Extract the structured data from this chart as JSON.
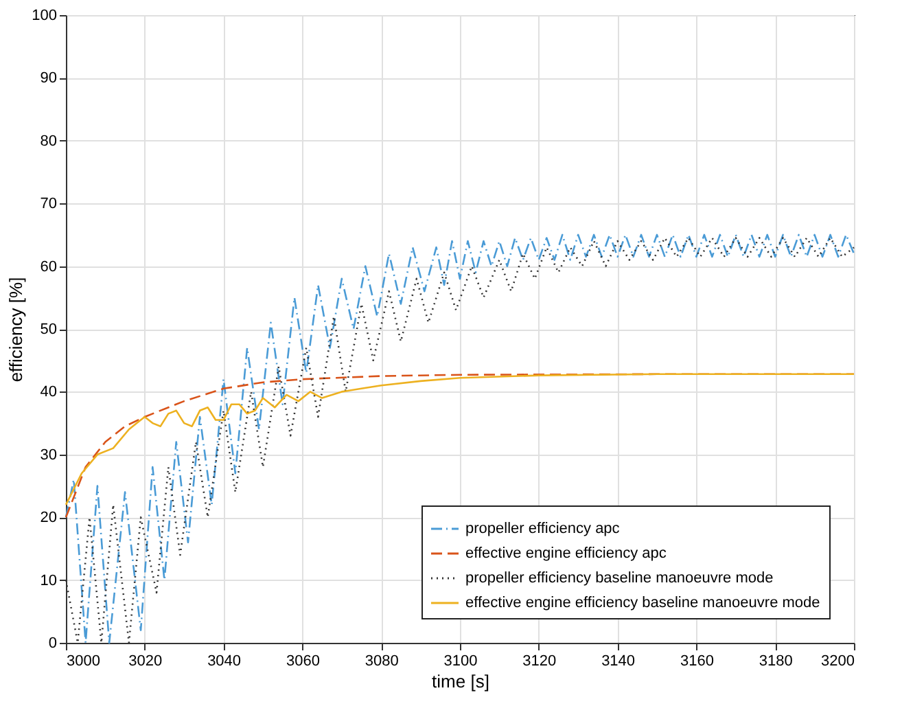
{
  "chart_data": {
    "type": "line",
    "xlabel": "time [s]",
    "ylabel": "efficiency [%]",
    "xlim": [
      3000,
      3200
    ],
    "ylim": [
      0,
      100
    ],
    "xticks": [
      3000,
      3020,
      3040,
      3060,
      3080,
      3100,
      3120,
      3140,
      3160,
      3180,
      3200
    ],
    "yticks": [
      0,
      10,
      20,
      30,
      40,
      50,
      60,
      70,
      80,
      90,
      100
    ],
    "grid": true,
    "legend": "bottom right",
    "series": [
      {
        "name": "propeller efficiency apc",
        "color": "#4a9bd6",
        "line_style": "dashdot",
        "x": [
          3000,
          3002,
          3005,
          3008,
          3011,
          3015,
          3019,
          3022,
          3025,
          3028,
          3031,
          3034,
          3037,
          3040,
          3043,
          3046,
          3049,
          3052,
          3055,
          3058,
          3061,
          3064,
          3067,
          3070,
          3073,
          3076,
          3079,
          3082,
          3085,
          3088,
          3091,
          3094,
          3096,
          3098,
          3100,
          3102,
          3104,
          3106,
          3108,
          3110,
          3112,
          3114,
          3116,
          3118,
          3120,
          3122,
          3124,
          3126,
          3128,
          3130,
          3132,
          3134,
          3136,
          3138,
          3140,
          3142,
          3144,
          3146,
          3148,
          3150,
          3152,
          3154,
          3156,
          3158,
          3160,
          3162,
          3164,
          3166,
          3168,
          3170,
          3172,
          3174,
          3176,
          3178,
          3180,
          3182,
          3184,
          3186,
          3188,
          3190,
          3192,
          3194,
          3196,
          3198,
          3200
        ],
        "values": [
          20,
          26,
          0,
          25,
          0,
          24,
          2,
          28,
          10,
          32,
          16,
          36,
          22,
          42,
          27,
          47,
          34,
          51,
          38,
          55,
          43,
          57,
          47,
          58,
          50,
          60,
          52,
          62,
          54,
          63,
          56,
          63,
          57,
          64,
          58,
          64,
          59,
          64,
          60,
          64,
          60,
          64.5,
          61,
          64.5,
          61,
          64.5,
          61,
          65,
          61,
          65,
          61.5,
          65,
          61.5,
          65,
          61.5,
          65,
          61.5,
          65,
          61.5,
          65,
          61.5,
          65,
          61.5,
          65,
          61.5,
          65,
          61.5,
          65,
          61.5,
          65,
          61.5,
          65,
          61.5,
          65,
          61.5,
          65,
          61.5,
          65,
          61.5,
          65,
          61.5,
          65,
          61.5,
          65,
          62
        ]
      },
      {
        "name": "effective engine efficiency apc",
        "color": "#d95319",
        "line_style": "dashed",
        "x": [
          3000,
          3005,
          3010,
          3015,
          3020,
          3030,
          3040,
          3050,
          3060,
          3080,
          3100,
          3150,
          3200
        ],
        "values": [
          20,
          28,
          32,
          34.5,
          36,
          38.5,
          40.5,
          41.5,
          42,
          42.5,
          42.7,
          42.8,
          42.8
        ]
      },
      {
        "name": "propeller efficiency baseline manoeuvre mode",
        "color": "#333333",
        "line_style": "dotted",
        "x": [
          3000,
          3003,
          3006,
          3009,
          3012,
          3016,
          3019,
          3023,
          3026,
          3029,
          3033,
          3036,
          3040,
          3043,
          3047,
          3050,
          3054,
          3057,
          3061,
          3064,
          3068,
          3071,
          3075,
          3078,
          3082,
          3085,
          3089,
          3092,
          3096,
          3099,
          3103,
          3106,
          3110,
          3113,
          3116,
          3119,
          3122,
          3125,
          3128,
          3131,
          3134,
          3137,
          3140,
          3143,
          3146,
          3149,
          3152,
          3155,
          3158,
          3161,
          3164,
          3167,
          3170,
          3173,
          3176,
          3179,
          3182,
          3185,
          3188,
          3191,
          3194,
          3197,
          3200
        ],
        "values": [
          10,
          0,
          20,
          0,
          22,
          0,
          20,
          8,
          28,
          14,
          32,
          20,
          37,
          24,
          40,
          28,
          44,
          33,
          47,
          36,
          52,
          40,
          54,
          45,
          56,
          48,
          58,
          51,
          59,
          53,
          60,
          55,
          61,
          56,
          62,
          58,
          63,
          59,
          63,
          60,
          64,
          60,
          64,
          61,
          64,
          61,
          64.5,
          61.5,
          64.5,
          61.5,
          64.5,
          61.5,
          64.5,
          61.5,
          64.5,
          61.5,
          64.5,
          61.5,
          64.5,
          61.5,
          64.5,
          61.5,
          63
        ]
      },
      {
        "name": "effective engine efficiency baseline manoeuvre mode",
        "color": "#edb120",
        "line_style": "solid",
        "x": [
          3000,
          3004,
          3008,
          3012,
          3016,
          3018,
          3020,
          3022,
          3024,
          3026,
          3028,
          3030,
          3032,
          3034,
          3036,
          3038,
          3040,
          3042,
          3044,
          3046,
          3048,
          3050,
          3053,
          3056,
          3059,
          3062,
          3065,
          3070,
          3075,
          3080,
          3090,
          3100,
          3120,
          3150,
          3200
        ],
        "values": [
          22,
          27,
          30,
          31,
          34,
          35,
          36,
          35,
          34.5,
          36.5,
          37,
          35,
          34.5,
          37,
          37.5,
          35.5,
          35.5,
          38,
          38,
          36.5,
          37,
          39,
          37.5,
          39.5,
          38.5,
          40,
          39,
          40,
          40.5,
          41,
          41.7,
          42.2,
          42.6,
          42.8,
          42.8
        ]
      }
    ]
  }
}
